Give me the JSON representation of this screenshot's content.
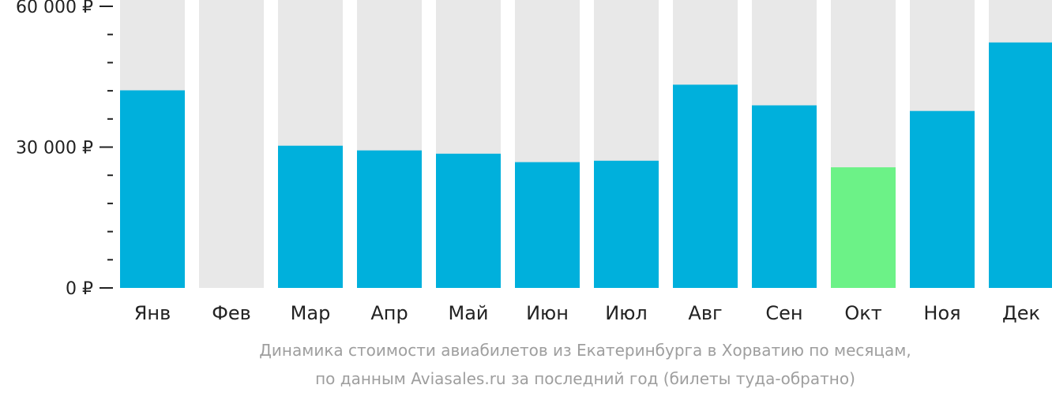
{
  "chart_data": {
    "type": "bar",
    "categories": [
      "Янв",
      "Фев",
      "Мар",
      "Апр",
      "Май",
      "Июн",
      "Июл",
      "Авг",
      "Сен",
      "Окт",
      "Ноя",
      "Дек"
    ],
    "values": [
      42100,
      null,
      30300,
      29300,
      28600,
      26800,
      27100,
      43300,
      38900,
      25700,
      37700,
      52300
    ],
    "highlight_category": "Окт",
    "ylim": [
      0,
      60000
    ],
    "y_ticks": [
      {
        "value": 0,
        "label": "0 ₽"
      },
      {
        "value": 30000,
        "label": "30 000 ₽"
      },
      {
        "value": 60000,
        "label": "60 000 ₽"
      }
    ],
    "y_minor_step": 6000,
    "grid": false,
    "caption_lines": [
      "Динамика стоимости авиабилетов из Екатеринбурга в Хорватию по месяцам,",
      "по данным Aviasales.ru за последний год (билеты туда-обратно)"
    ]
  },
  "colors": {
    "bar": "#00b0dc",
    "bar_highlight": "#6cf287",
    "bar_background": "#e8e8e8",
    "axis": "#222222",
    "caption": "#9e9e9e"
  }
}
